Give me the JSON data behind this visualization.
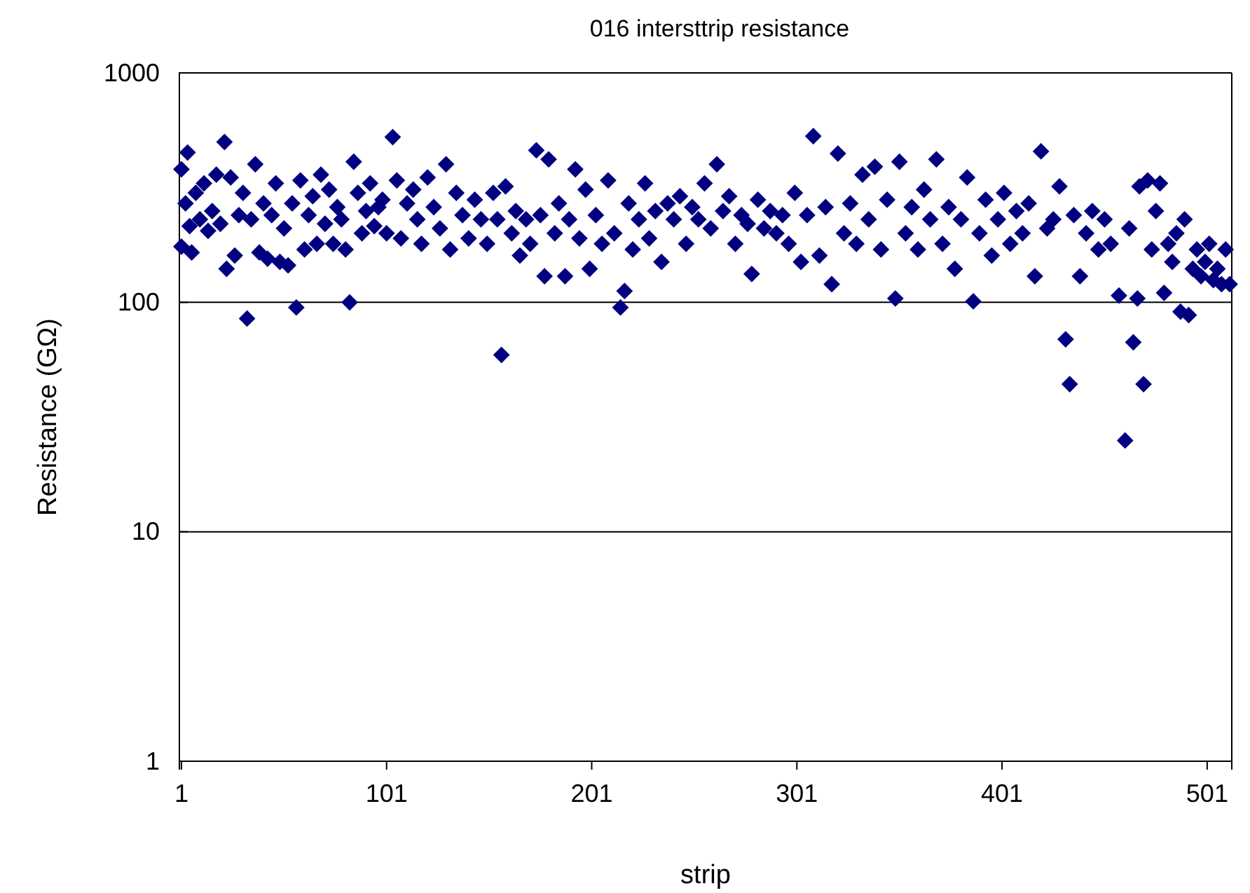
{
  "chart_data": {
    "type": "scatter",
    "title": "016 intersttrip resistance",
    "xlabel": "strip",
    "ylabel": "Resistance (GΩ)",
    "log": "y",
    "grid": "y",
    "marker": "diamond",
    "xlim": [
      0,
      513
    ],
    "xticks": [
      1,
      101,
      201,
      301,
      401,
      501
    ],
    "ylim": [
      1,
      1000
    ],
    "yticks": [
      1,
      10,
      100,
      1000
    ],
    "series": [
      {
        "color": "#000080",
        "x": [
          1,
          1,
          3,
          4,
          5,
          6,
          8,
          10,
          12,
          14,
          16,
          18,
          20,
          22,
          23,
          25,
          27,
          29,
          31,
          33,
          35,
          37,
          39,
          41,
          43,
          45,
          47,
          49,
          51,
          53,
          55,
          57,
          59,
          61,
          63,
          65,
          67,
          69,
          71,
          73,
          75,
          77,
          79,
          81,
          83,
          85,
          87,
          89,
          91,
          93,
          95,
          97,
          99,
          101,
          104,
          106,
          108,
          111,
          114,
          116,
          118,
          121,
          124,
          127,
          130,
          132,
          135,
          138,
          141,
          144,
          147,
          150,
          153,
          155,
          157,
          159,
          162,
          164,
          166,
          169,
          171,
          174,
          176,
          178,
          180,
          183,
          185,
          188,
          190,
          193,
          195,
          198,
          200,
          203,
          206,
          209,
          212,
          215,
          217,
          219,
          221,
          224,
          227,
          229,
          232,
          235,
          238,
          241,
          244,
          247,
          250,
          253,
          256,
          259,
          262,
          265,
          268,
          271,
          274,
          277,
          279,
          282,
          285,
          288,
          291,
          294,
          297,
          300,
          303,
          306,
          309,
          312,
          315,
          318,
          321,
          324,
          327,
          330,
          333,
          336,
          339,
          342,
          345,
          349,
          351,
          354,
          357,
          360,
          363,
          366,
          369,
          372,
          375,
          378,
          381,
          384,
          387,
          390,
          393,
          396,
          399,
          402,
          405,
          408,
          411,
          414,
          417,
          420,
          423,
          426,
          429,
          432,
          434,
          436,
          439,
          442,
          445,
          448,
          451,
          454,
          458,
          461,
          463,
          465,
          467,
          468,
          470,
          472,
          474,
          476,
          478,
          480,
          482,
          484,
          486,
          488,
          490,
          492,
          494,
          496,
          498,
          500,
          502,
          504,
          506,
          508,
          510,
          512
        ],
        "values": [
          380,
          175,
          270,
          450,
          215,
          165,
          300,
          230,
          330,
          205,
          250,
          360,
          220,
          500,
          140,
          350,
          160,
          240,
          300,
          85,
          230,
          400,
          165,
          270,
          155,
          240,
          330,
          150,
          210,
          145,
          270,
          95,
          340,
          170,
          240,
          290,
          180,
          360,
          220,
          310,
          180,
          260,
          230,
          170,
          100,
          410,
          300,
          200,
          250,
          330,
          215,
          260,
          280,
          200,
          525,
          340,
          190,
          270,
          310,
          230,
          180,
          350,
          260,
          210,
          400,
          170,
          300,
          240,
          190,
          280,
          230,
          180,
          300,
          230,
          59,
          320,
          200,
          250,
          160,
          230,
          180,
          460,
          240,
          130,
          420,
          200,
          270,
          130,
          230,
          380,
          190,
          310,
          140,
          240,
          180,
          340,
          200,
          95,
          112,
          270,
          170,
          230,
          330,
          190,
          250,
          150,
          270,
          230,
          290,
          180,
          260,
          230,
          330,
          210,
          400,
          250,
          290,
          180,
          240,
          220,
          133,
          280,
          210,
          250,
          200,
          240,
          180,
          300,
          150,
          240,
          530,
          160,
          260,
          120,
          445,
          200,
          270,
          180,
          360,
          230,
          390,
          170,
          280,
          104,
          410,
          200,
          260,
          170,
          310,
          230,
          420,
          180,
          260,
          140,
          230,
          350,
          101,
          200,
          280,
          160,
          230,
          300,
          180,
          250,
          200,
          270,
          130,
          455,
          210,
          230,
          320,
          69,
          44,
          240,
          130,
          200,
          250,
          170,
          230,
          180,
          107,
          25,
          210,
          67,
          104,
          320,
          44,
          340,
          170,
          250,
          330,
          110,
          180,
          150,
          200,
          91,
          230,
          88,
          140,
          170,
          130,
          150,
          180,
          125,
          140,
          120,
          170,
          120
        ]
      }
    ]
  }
}
